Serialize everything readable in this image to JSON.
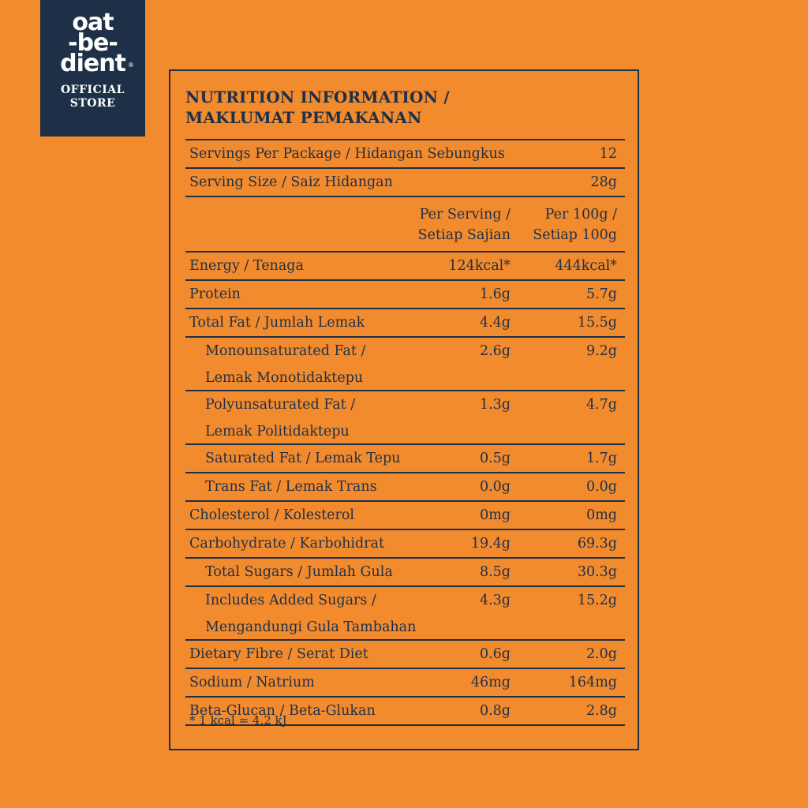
{
  "logo": {
    "line1": "oat",
    "line2": "-be-",
    "line3": "dient",
    "registered": "®",
    "store1": "OFFICIAL",
    "store2": "STORE"
  },
  "title": {
    "line1": "NUTRITION INFORMATION /",
    "line2": "MAKLUMAT PEMAKANAN"
  },
  "servings": {
    "label": "Servings Per Package / Hidangan Sebungkus",
    "value": "12"
  },
  "serving_size": {
    "label": "Serving Size / Saiz Hidangan",
    "value": "28g"
  },
  "columns": {
    "per_serving_1": "Per Serving /",
    "per_serving_2": "Setiap Sajian",
    "per_100g_1": "Per 100g /",
    "per_100g_2": "Setiap 100g"
  },
  "rows": [
    {
      "name": "Energy / Tenaga",
      "per_serving": "124kcal*",
      "per_100g": "444kcal*"
    },
    {
      "name": "Protein",
      "per_serving": "1.6g",
      "per_100g": "5.7g"
    },
    {
      "name": "Total Fat / Jumlah Lemak",
      "per_serving": "4.4g",
      "per_100g": "15.5g"
    },
    {
      "name": "Monounsaturated Fat /",
      "name2": "Lemak Monotidaktepu",
      "per_serving": "2.6g",
      "per_100g": "9.2g"
    },
    {
      "name": "Polyunsaturated Fat /",
      "name2": "Lemak Politidaktepu",
      "per_serving": "1.3g",
      "per_100g": "4.7g"
    },
    {
      "name": "Saturated Fat / Lemak Tepu",
      "per_serving": "0.5g",
      "per_100g": "1.7g"
    },
    {
      "name": "Trans Fat / Lemak Trans",
      "per_serving": "0.0g",
      "per_100g": "0.0g"
    },
    {
      "name": "Cholesterol / Kolesterol",
      "per_serving": "0mg",
      "per_100g": "0mg"
    },
    {
      "name": "Carbohydrate / Karbohidrat",
      "per_serving": "19.4g",
      "per_100g": "69.3g"
    },
    {
      "name": "Total Sugars / Jumlah Gula",
      "per_serving": "8.5g",
      "per_100g": "30.3g"
    },
    {
      "name": "Includes Added Sugars /",
      "name2": "Mengandungi Gula Tambahan",
      "per_serving": "4.3g",
      "per_100g": "15.2g"
    },
    {
      "name": "Dietary Fibre / Serat Diet",
      "per_serving": "0.6g",
      "per_100g": "2.0g"
    },
    {
      "name": "Sodium / Natrium",
      "per_serving": "46mg",
      "per_100g": "164mg"
    },
    {
      "name": "Beta-Glucan / Beta-Glukan",
      "per_serving": "0.8g",
      "per_100g": "2.8g"
    }
  ],
  "footnote": "* 1 kcal = 4.2 kJ",
  "colors": {
    "background": "#F28A2E",
    "ink": "#1E3047",
    "logo_bg": "#1E3047"
  }
}
